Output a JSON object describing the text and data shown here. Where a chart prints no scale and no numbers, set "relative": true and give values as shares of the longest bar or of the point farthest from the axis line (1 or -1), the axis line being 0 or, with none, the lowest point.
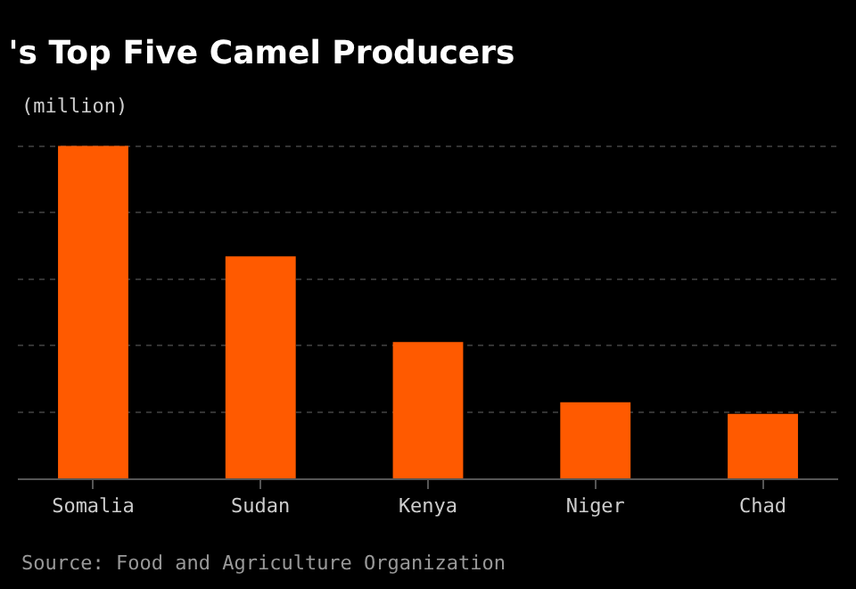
{
  "chart_data": {
    "type": "bar",
    "title": "'s Top Five Camel Producers",
    "subtitle": "(million)",
    "categories": [
      "Somalia",
      "Sudan",
      "Kenya",
      "Niger",
      "Chad"
    ],
    "values": [
      1,
      0.668,
      0.41,
      0.229,
      0.194
    ],
    "color": "#ff5a00",
    "relative": true,
    "grid": "y",
    "annotations": [
      "Source: Food and Agriculture Organization"
    ]
  }
}
